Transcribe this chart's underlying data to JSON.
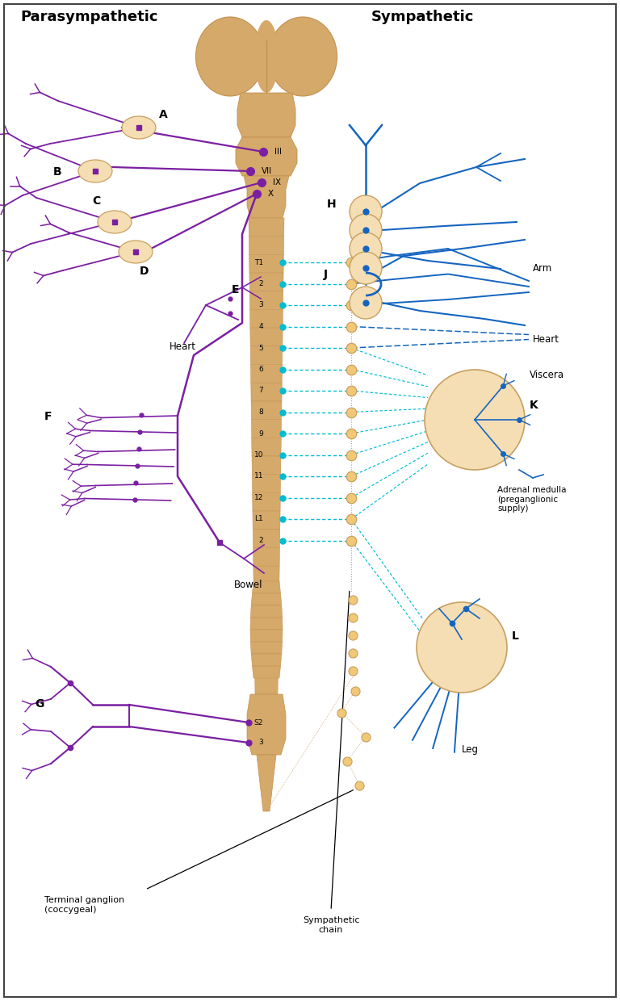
{
  "title_parasympathetic": "Parasympathetic",
  "title_sympathetic": "Sympathetic",
  "para_color": "#7B1FA2",
  "symp_color": "#1565C0",
  "spine_color": "#D4A96A",
  "spine_color2": "#C49050",
  "ganglion_color": "#F5DEB3",
  "ganglion_border": "#C8A060",
  "chain_dot_color": "#F0C878",
  "chain_dot_border": "#C8A060",
  "dashed_color": "#00BCD4",
  "background": "#FFFFFF",
  "spinal_labels": [
    "T1",
    "2",
    "3",
    "4",
    "5",
    "6",
    "7",
    "8",
    "9",
    "10",
    "11",
    "12",
    "L1",
    "2"
  ],
  "sacral_labels": [
    "S2",
    "3"
  ],
  "label_A": "A",
  "label_B": "B",
  "label_C": "C",
  "label_D": "D",
  "label_E": "E",
  "label_F": "F",
  "label_G": "G",
  "label_H": "H",
  "label_J": "J",
  "label_K": "K",
  "label_L": "L",
  "text_heart": "Heart",
  "text_bowel": "Bowel",
  "text_arm": "Arm",
  "text_heart2": "Heart",
  "text_viscera": "Viscera",
  "text_adrenal": "Adrenal medulla\n(preganglionic\nsupply)",
  "text_leg": "Leg",
  "text_terminal": "Terminal ganglion\n(coccygeal)",
  "text_symp_chain": "Sympathetic\nchain"
}
